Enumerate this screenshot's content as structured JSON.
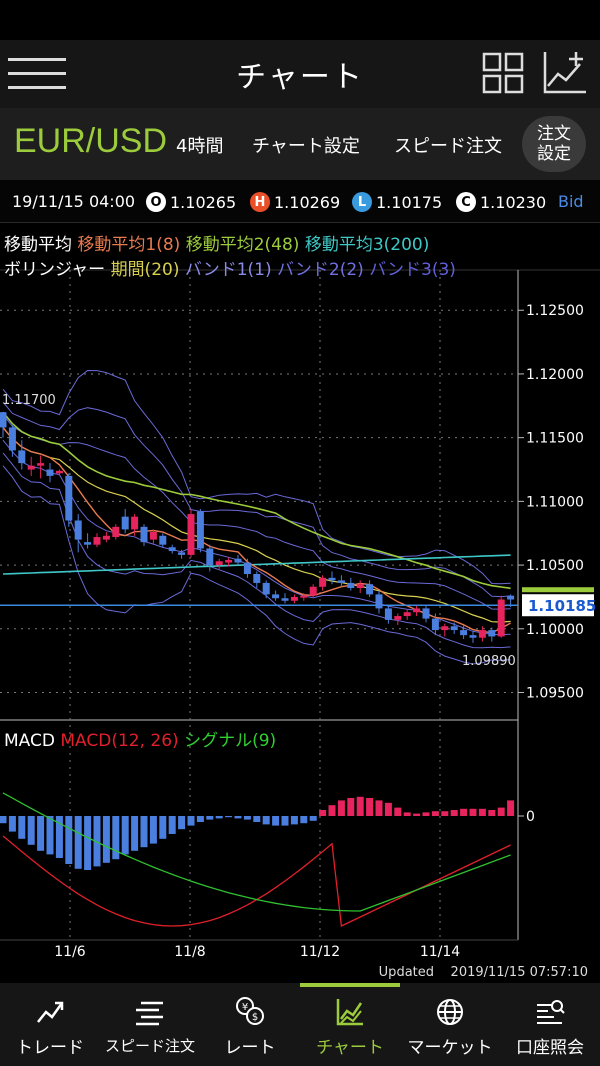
{
  "header": {
    "title": "チャート"
  },
  "symbol_bar": {
    "symbol": "EUR/USD",
    "timeframe": "4時間",
    "chart_settings": "チャート設定",
    "speed_order": "スピード注文",
    "order_line1": "注文",
    "order_line2": "設定"
  },
  "ohlc": {
    "datetime": "19/11/15 04:00",
    "o_badge": "O",
    "open": "1.10265",
    "h_badge": "H",
    "high": "1.10269",
    "l_badge": "L",
    "low": "1.10175",
    "c_badge": "C",
    "close": "1.10230",
    "price_type": "Bid"
  },
  "legend": {
    "ma_label": "移動平均",
    "ma1": "移動平均1(8)",
    "ma2": "移動平均2(48)",
    "ma3": "移動平均3(200)",
    "bb_label": "ボリンジャー",
    "bb_period": "期間(20)",
    "band1": "バンド1(1)",
    "band2": "バンド2(2)",
    "band3": "バンド3(3)"
  },
  "macd_legend": {
    "label": "MACD",
    "macd": "MACD(12, 26)",
    "signal": "シグナル(9)"
  },
  "colors": {
    "accent": "#9ccc3c",
    "up": "#e8245f",
    "down": "#4a7fe0",
    "ma1": "#e87a50",
    "ma2": "#9ccc3c",
    "ma3": "#40c8c8",
    "bb_mid": "#d8d050",
    "band": "#6a6ad8"
  },
  "chart_data": {
    "type": "candlestick",
    "price_axis": [
      "1.12500",
      "1.12000",
      "1.11500",
      "1.11000",
      "1.10500",
      "1.10000",
      "1.09500"
    ],
    "ylim": [
      1.093,
      1.128
    ],
    "x_labels": [
      "11/6",
      "11/8",
      "11/12",
      "11/14"
    ],
    "current_price": "1.10185",
    "max_label": "1.11700",
    "min_label": "1.09890",
    "candles": [
      [
        1.117,
        1.117,
        1.115,
        1.1158
      ],
      [
        1.1158,
        1.116,
        1.1135,
        1.114
      ],
      [
        1.114,
        1.1148,
        1.1125,
        1.113
      ],
      [
        1.1125,
        1.1135,
        1.112,
        1.1128
      ],
      [
        1.1128,
        1.1136,
        1.1118,
        1.113
      ],
      [
        1.1125,
        1.113,
        1.1115,
        1.112
      ],
      [
        1.1122,
        1.1125,
        1.112,
        1.1124
      ],
      [
        1.112,
        1.1122,
        1.108,
        1.1085
      ],
      [
        1.1085,
        1.109,
        1.106,
        1.107
      ],
      [
        1.1068,
        1.1075,
        1.1063,
        1.1066
      ],
      [
        1.1066,
        1.1075,
        1.1064,
        1.1072
      ],
      [
        1.107,
        1.1076,
        1.1068,
        1.1073
      ],
      [
        1.1072,
        1.1082,
        1.107,
        1.108
      ],
      [
        1.1088,
        1.1094,
        1.1075,
        1.1078
      ],
      [
        1.1078,
        1.109,
        1.1073,
        1.1088
      ],
      [
        1.108,
        1.1082,
        1.1065,
        1.1068
      ],
      [
        1.107,
        1.1078,
        1.1066,
        1.1076
      ],
      [
        1.1073,
        1.1075,
        1.1064,
        1.1066
      ],
      [
        1.1064,
        1.1066,
        1.1059,
        1.1061
      ],
      [
        1.106,
        1.1062,
        1.1055,
        1.1058
      ],
      [
        1.1058,
        1.1094,
        1.1056,
        1.109
      ],
      [
        1.1092,
        1.1094,
        1.106,
        1.1063
      ],
      [
        1.1063,
        1.1066,
        1.1045,
        1.105
      ],
      [
        1.105,
        1.1055,
        1.1047,
        1.1053
      ],
      [
        1.1052,
        1.1056,
        1.1049,
        1.1054
      ],
      [
        1.1055,
        1.1058,
        1.105,
        1.1052
      ],
      [
        1.1052,
        1.1055,
        1.104,
        1.1043
      ],
      [
        1.1043,
        1.1045,
        1.1032,
        1.1036
      ],
      [
        1.1036,
        1.1038,
        1.1024,
        1.1027
      ],
      [
        1.1027,
        1.103,
        1.1022,
        1.1024
      ],
      [
        1.1024,
        1.1028,
        1.102,
        1.1022
      ],
      [
        1.1022,
        1.1027,
        1.102,
        1.1025
      ],
      [
        1.1025,
        1.1028,
        1.1022,
        1.1026
      ],
      [
        1.1026,
        1.1035,
        1.1025,
        1.1033
      ],
      [
        1.1033,
        1.1042,
        1.103,
        1.104
      ],
      [
        1.104,
        1.1045,
        1.1035,
        1.1038
      ],
      [
        1.1038,
        1.1042,
        1.1033,
        1.1036
      ],
      [
        1.1036,
        1.104,
        1.103,
        1.1032
      ],
      [
        1.1032,
        1.1038,
        1.1028,
        1.1035
      ],
      [
        1.1035,
        1.1038,
        1.1025,
        1.1027
      ],
      [
        1.1027,
        1.103,
        1.1012,
        1.1016
      ],
      [
        1.1016,
        1.1018,
        1.1004,
        1.1007
      ],
      [
        1.1007,
        1.1012,
        1.1003,
        1.101
      ],
      [
        1.101,
        1.1015,
        1.1007,
        1.1013
      ],
      [
        1.1013,
        1.1018,
        1.101,
        1.1016
      ],
      [
        1.1016,
        1.1018,
        1.1005,
        1.1008
      ],
      [
        1.1008,
        1.1012,
        1.0995,
        1.0999
      ],
      [
        1.0999,
        1.1004,
        1.0994,
        1.1002
      ],
      [
        1.1002,
        1.1005,
        1.0996,
        1.0999
      ],
      [
        1.0999,
        1.1003,
        1.0992,
        1.0995
      ],
      [
        1.0995,
        1.0998,
        1.0989,
        1.0993
      ],
      [
        1.0993,
        1.1002,
        1.099,
        1.0999
      ],
      [
        1.0999,
        1.1001,
        1.099,
        1.0994
      ],
      [
        1.0994,
        1.1026,
        1.0993,
        1.1023
      ],
      [
        1.1026,
        1.1027,
        1.1017,
        1.1023
      ]
    ],
    "macd_hist": [
      -0.6,
      -1.3,
      -1.9,
      -2.4,
      -2.9,
      -3.2,
      -3.5,
      -4.0,
      -4.4,
      -4.5,
      -4.2,
      -3.9,
      -3.6,
      -3.2,
      -2.9,
      -2.6,
      -2.3,
      -1.9,
      -1.5,
      -1.1,
      -0.8,
      -0.5,
      -0.3,
      -0.2,
      -0.1,
      -0.2,
      -0.3,
      -0.5,
      -0.7,
      -0.8,
      -0.8,
      -0.7,
      -0.6,
      -0.4,
      0.5,
      0.9,
      1.3,
      1.5,
      1.6,
      1.5,
      1.3,
      1.1,
      0.7,
      0.3,
      0.2,
      0.3,
      0.4,
      0.4,
      0.5,
      0.6,
      0.6,
      0.6,
      0.5,
      0.7,
      1.3
    ]
  },
  "updated": {
    "label": "Updated",
    "datetime": "2019/11/15  07:57:10"
  },
  "nav": {
    "trade": "トレード",
    "speed": "スピード注文",
    "rate": "レート",
    "chart": "チャート",
    "market": "マーケット",
    "account": "口座照会"
  }
}
